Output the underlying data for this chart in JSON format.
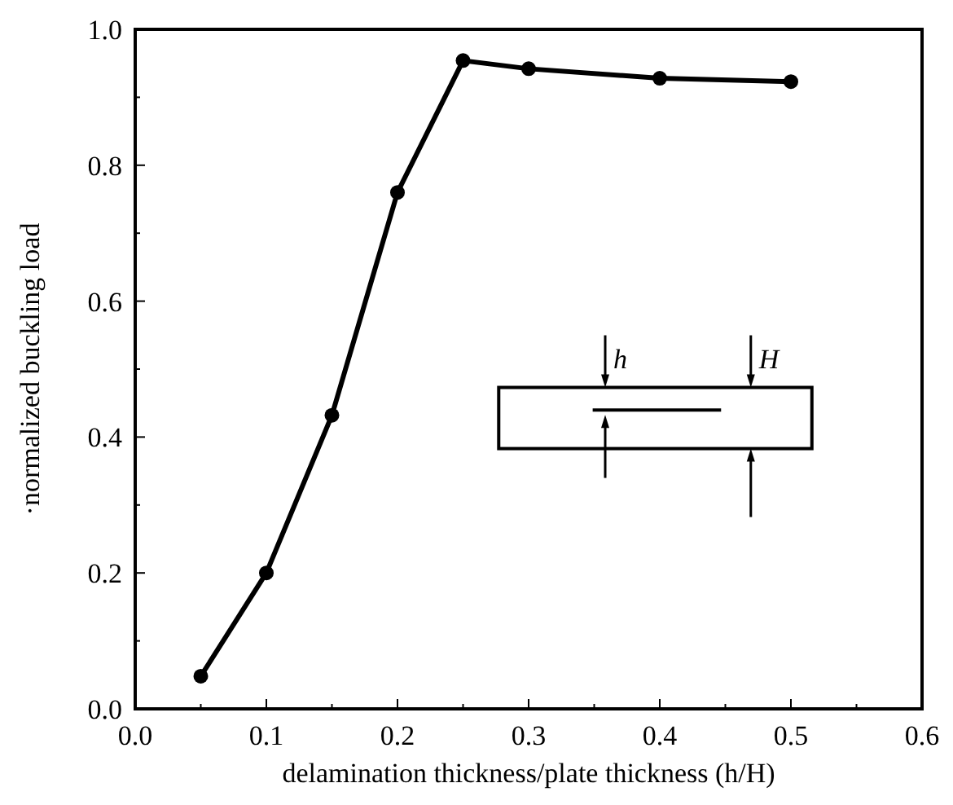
{
  "chart_data": {
    "type": "line",
    "xlabel": "delamination thickness/plate thickness (h/H)",
    "ylabel": "·normalized buckling load",
    "x": [
      0.05,
      0.1,
      0.15,
      0.2,
      0.25,
      0.3,
      0.4,
      0.5
    ],
    "series": [
      {
        "color": "#000000",
        "values": [
          0.048,
          0.2,
          0.432,
          0.76,
          0.954,
          0.942,
          0.928,
          0.923
        ]
      }
    ],
    "xlim": [
      0,
      0.6
    ],
    "xticks": [
      {
        "value": 0,
        "label": "0.0"
      },
      {
        "value": 0.05,
        "label": null
      },
      0.1,
      {
        "value": 0.15,
        "label": null
      },
      0.2,
      {
        "value": 0.25,
        "label": null
      },
      0.3,
      {
        "value": 0.35,
        "label": null
      },
      0.4,
      {
        "value": 0.45,
        "label": null
      },
      0.5,
      {
        "value": 0.55,
        "label": null
      },
      0.6
    ],
    "ylim": [
      0,
      1
    ],
    "yticks": [
      {
        "value": 0,
        "label": "0.0"
      },
      {
        "value": 0.1,
        "label": null
      },
      0.2,
      {
        "value": 0.3,
        "label": null
      },
      0.4,
      {
        "value": 0.5,
        "label": null
      },
      0.6,
      {
        "value": 0.7,
        "label": null
      },
      0.8,
      {
        "value": 0.9,
        "label": null
      },
      {
        "value": 1,
        "label": "1.0"
      }
    ],
    "annotations": [
      "h",
      "H"
    ],
    "marker": "circle",
    "line_style": "solid",
    "grid": false
  }
}
